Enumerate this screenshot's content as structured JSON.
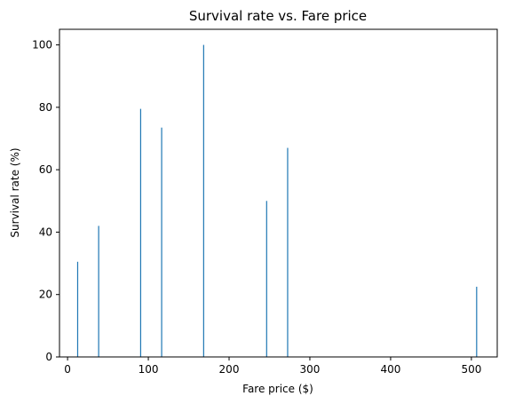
{
  "chart_data": {
    "type": "bar",
    "title": "Survival rate vs. Fare price",
    "xlabel": "Fare price ($)",
    "ylabel": "Survival rate (%)",
    "xlim": [
      -10,
      532
    ],
    "ylim": [
      0,
      105
    ],
    "xticks": [
      0,
      100,
      200,
      300,
      400,
      500
    ],
    "yticks": [
      0,
      20,
      40,
      60,
      80,
      100
    ],
    "grid": false,
    "colors": {
      "bar": "#1f77b4"
    },
    "x": [
      12.5,
      38.5,
      90.5,
      116.5,
      168.5,
      246.5,
      272.5,
      506.5
    ],
    "values": [
      30.5,
      42,
      79.5,
      73.5,
      100,
      50,
      67,
      22.5
    ]
  }
}
